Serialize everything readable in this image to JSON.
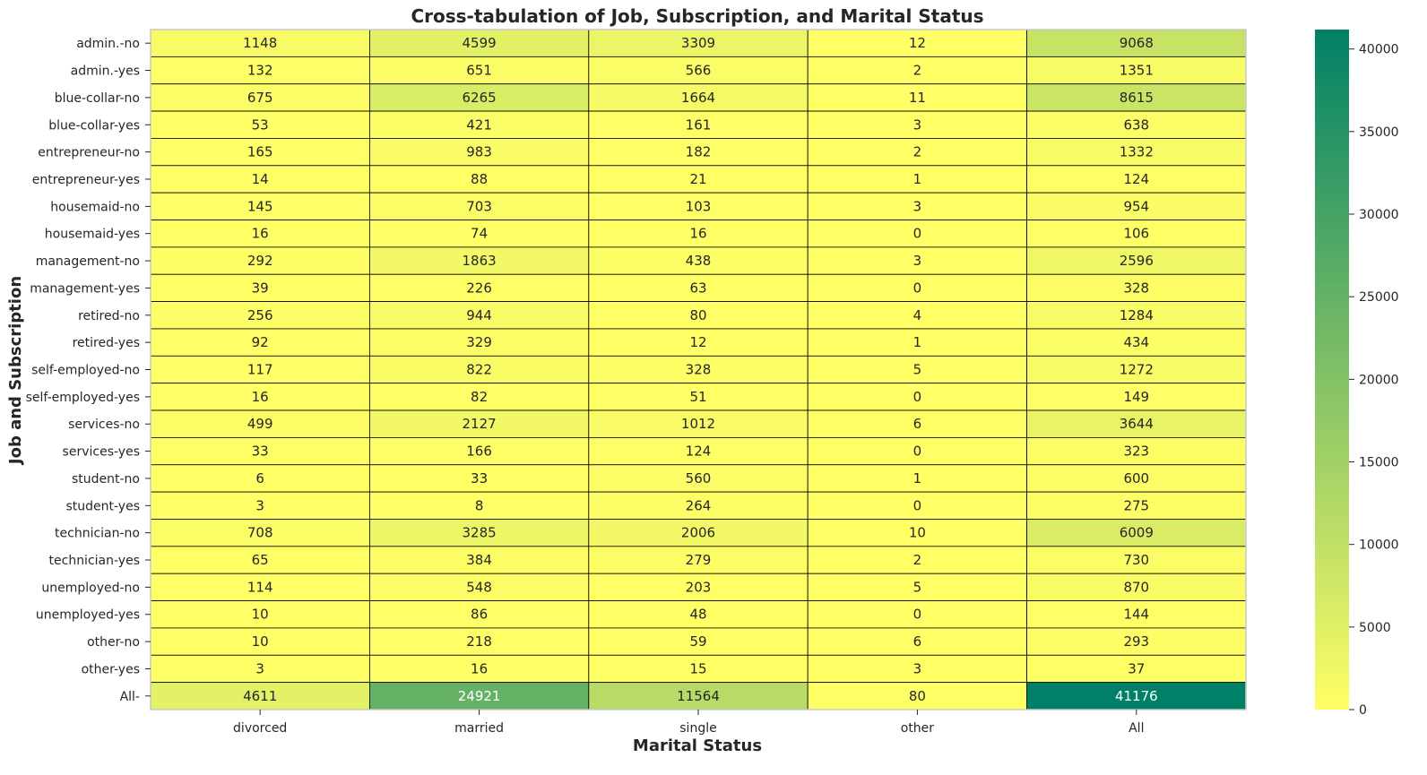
{
  "chart_data": {
    "type": "heatmap",
    "title": "Cross-tabulation of Job, Subscription, and Marital Status",
    "xlabel": "Marital Status",
    "ylabel": "Job and Subscription",
    "columns": [
      "divorced",
      "married",
      "single",
      "other",
      "All"
    ],
    "rows": [
      "admin.-no",
      "admin.-yes",
      "blue-collar-no",
      "blue-collar-yes",
      "entrepreneur-no",
      "entrepreneur-yes",
      "housemaid-no",
      "housemaid-yes",
      "management-no",
      "management-yes",
      "retired-no",
      "retired-yes",
      "self-employed-no",
      "self-employed-yes",
      "services-no",
      "services-yes",
      "student-no",
      "student-yes",
      "technician-no",
      "technician-yes",
      "unemployed-no",
      "unemployed-yes",
      "other-no",
      "other-yes",
      "All-"
    ],
    "values": [
      [
        1148,
        4599,
        3309,
        12,
        9068
      ],
      [
        132,
        651,
        566,
        2,
        1351
      ],
      [
        675,
        6265,
        1664,
        11,
        8615
      ],
      [
        53,
        421,
        161,
        3,
        638
      ],
      [
        165,
        983,
        182,
        2,
        1332
      ],
      [
        14,
        88,
        21,
        1,
        124
      ],
      [
        145,
        703,
        103,
        3,
        954
      ],
      [
        16,
        74,
        16,
        0,
        106
      ],
      [
        292,
        1863,
        438,
        3,
        2596
      ],
      [
        39,
        226,
        63,
        0,
        328
      ],
      [
        256,
        944,
        80,
        4,
        1284
      ],
      [
        92,
        329,
        12,
        1,
        434
      ],
      [
        117,
        822,
        328,
        5,
        1272
      ],
      [
        16,
        82,
        51,
        0,
        149
      ],
      [
        499,
        2127,
        1012,
        6,
        3644
      ],
      [
        33,
        166,
        124,
        0,
        323
      ],
      [
        6,
        33,
        560,
        1,
        600
      ],
      [
        3,
        8,
        264,
        0,
        275
      ],
      [
        708,
        3285,
        2006,
        10,
        6009
      ],
      [
        65,
        384,
        279,
        2,
        730
      ],
      [
        114,
        548,
        203,
        5,
        870
      ],
      [
        10,
        86,
        48,
        0,
        144
      ],
      [
        10,
        218,
        59,
        6,
        293
      ],
      [
        3,
        16,
        15,
        3,
        37
      ],
      [
        4611,
        24921,
        11564,
        80,
        41176
      ]
    ],
    "colorbar": {
      "colormap": "summer_r",
      "vmin": 0,
      "vmax": 41176,
      "ticks": [
        0,
        5000,
        10000,
        15000,
        20000,
        25000,
        30000,
        35000,
        40000
      ],
      "color_low": "#ffff66",
      "color_high": "#008066"
    }
  }
}
